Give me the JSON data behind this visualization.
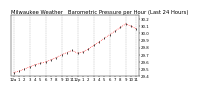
{
  "title": "Milwaukee Weather   Barometric Pressure per Hour (Last 24 Hours)",
  "x_values": [
    0,
    1,
    2,
    3,
    4,
    5,
    6,
    7,
    8,
    9,
    10,
    11,
    12,
    13,
    14,
    15,
    16,
    17,
    18,
    19,
    20,
    21,
    22,
    23
  ],
  "y_values": [
    29.45,
    29.47,
    29.5,
    29.53,
    29.56,
    29.58,
    29.6,
    29.63,
    29.66,
    29.7,
    29.73,
    29.76,
    29.72,
    29.74,
    29.78,
    29.83,
    29.88,
    29.93,
    29.98,
    30.03,
    30.08,
    30.13,
    30.1,
    30.06
  ],
  "line_color": "#ff0000",
  "marker_color": "#000000",
  "bg_color": "#ffffff",
  "grid_color": "#b0b0b0",
  "title_fontsize": 3.8,
  "tick_fontsize": 2.8,
  "ylim": [
    29.4,
    30.25
  ],
  "ytick_values": [
    29.4,
    29.5,
    29.6,
    29.7,
    29.8,
    29.9,
    30.0,
    30.1,
    30.2
  ],
  "xlabel_values": [
    "12a",
    "1",
    "2",
    "3",
    "4",
    "5",
    "6",
    "7",
    "8",
    "9",
    "10",
    "11",
    "12p",
    "1",
    "2",
    "3",
    "4",
    "5",
    "6",
    "7",
    "8",
    "9",
    "10",
    "11"
  ]
}
